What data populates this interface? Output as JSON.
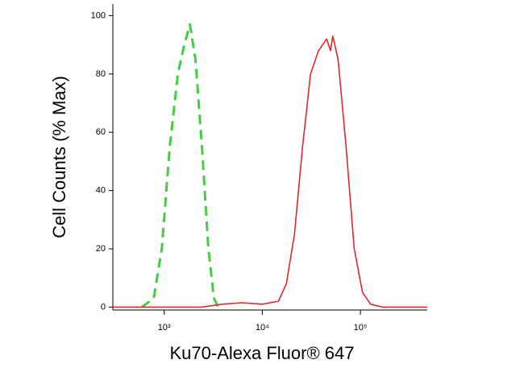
{
  "chart_data": {
    "type": "line",
    "xscale": "log",
    "xlabel": "Ku70-Alexa Fluor® 647",
    "ylabel": "Cell Counts (% Max)",
    "xlim": [
      300,
      480000
    ],
    "ylim": [
      -1,
      104
    ],
    "xticks": [
      {
        "value": 1000,
        "label": "10³"
      },
      {
        "value": 10000,
        "label": "10⁴"
      },
      {
        "value": 100000,
        "label": "10⁵"
      }
    ],
    "yticks": [
      0,
      20,
      40,
      60,
      80,
      100
    ],
    "series": [
      {
        "color": "#44cc44",
        "linestyle": "dashed",
        "x": [
          590,
          783,
          945,
          1141,
          1378,
          1602,
          1830,
          2087,
          2428,
          2824,
          3218,
          3540
        ],
        "values": [
          0,
          3,
          20,
          55,
          80,
          90,
          97,
          85,
          55,
          20,
          3,
          0
        ]
      },
      {
        "color": "#e02828",
        "linestyle": "solid",
        "x": [
          300,
          2428,
          3890,
          6230,
          10000,
          14600,
          17600,
          21300,
          25700,
          31000,
          37400,
          45200,
          49600,
          52300,
          59200,
          71500,
          86400,
          105000,
          127000,
          168000,
          480000
        ],
        "values": [
          0,
          0,
          1,
          1.5,
          1,
          2,
          8,
          25,
          55,
          80,
          88,
          92,
          88,
          93,
          85,
          55,
          20,
          5,
          1,
          0,
          0
        ]
      }
    ]
  }
}
